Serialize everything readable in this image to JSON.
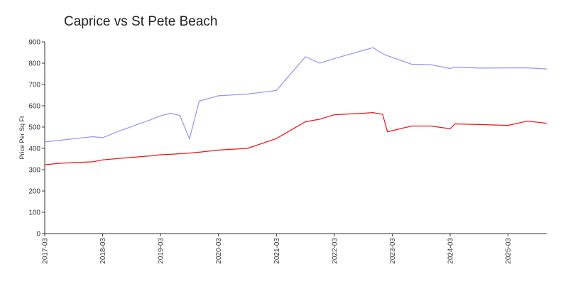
{
  "chart_data": {
    "type": "line",
    "title": "Caprice vs St Pete Beach",
    "y_label": "Price Per Sq Ft",
    "x": [
      "2017-03",
      "2017-06",
      "2018-01",
      "2018-03",
      "2018-06",
      "2019-01",
      "2019-03",
      "2019-05",
      "2019-07",
      "2019-09",
      "2019-11",
      "2020-03",
      "2020-09",
      "2021-03",
      "2021-09",
      "2021-12",
      "2022-03",
      "2022-09",
      "2022-11",
      "2023-01",
      "2023-02",
      "2023-07",
      "2023-11",
      "2024-03",
      "2024-04",
      "2024-09",
      "2025-03",
      "2025-07",
      "2025-11"
    ],
    "series": [
      {
        "color": "#9494ee",
        "values": [
          430,
          438,
          455,
          450,
          478,
          535,
          553,
          565,
          555,
          445,
          622,
          647,
          655,
          672,
          830,
          800,
          822,
          860,
          873,
          845,
          835,
          795,
          793,
          775,
          782,
          777,
          778,
          778,
          773
        ]
      },
      {
        "color": "#e8141a",
        "values": [
          323,
          330,
          337,
          346,
          352,
          365,
          370,
          372,
          375,
          378,
          382,
          392,
          400,
          446,
          525,
          537,
          558,
          565,
          568,
          560,
          478,
          505,
          505,
          492,
          515,
          512,
          508,
          528,
          518
        ]
      }
    ],
    "xlim": [
      "2017-03",
      "2025-11"
    ],
    "xticks": [
      "2017-03",
      "2018-03",
      "2019-03",
      "2020-03",
      "2021-03",
      "2022-03",
      "2023-03",
      "2024-03",
      "2025-03"
    ],
    "ylim": [
      0,
      900
    ],
    "yticks": [
      0,
      100,
      200,
      300,
      400,
      500,
      600,
      700,
      800,
      900
    ],
    "grid": false
  }
}
